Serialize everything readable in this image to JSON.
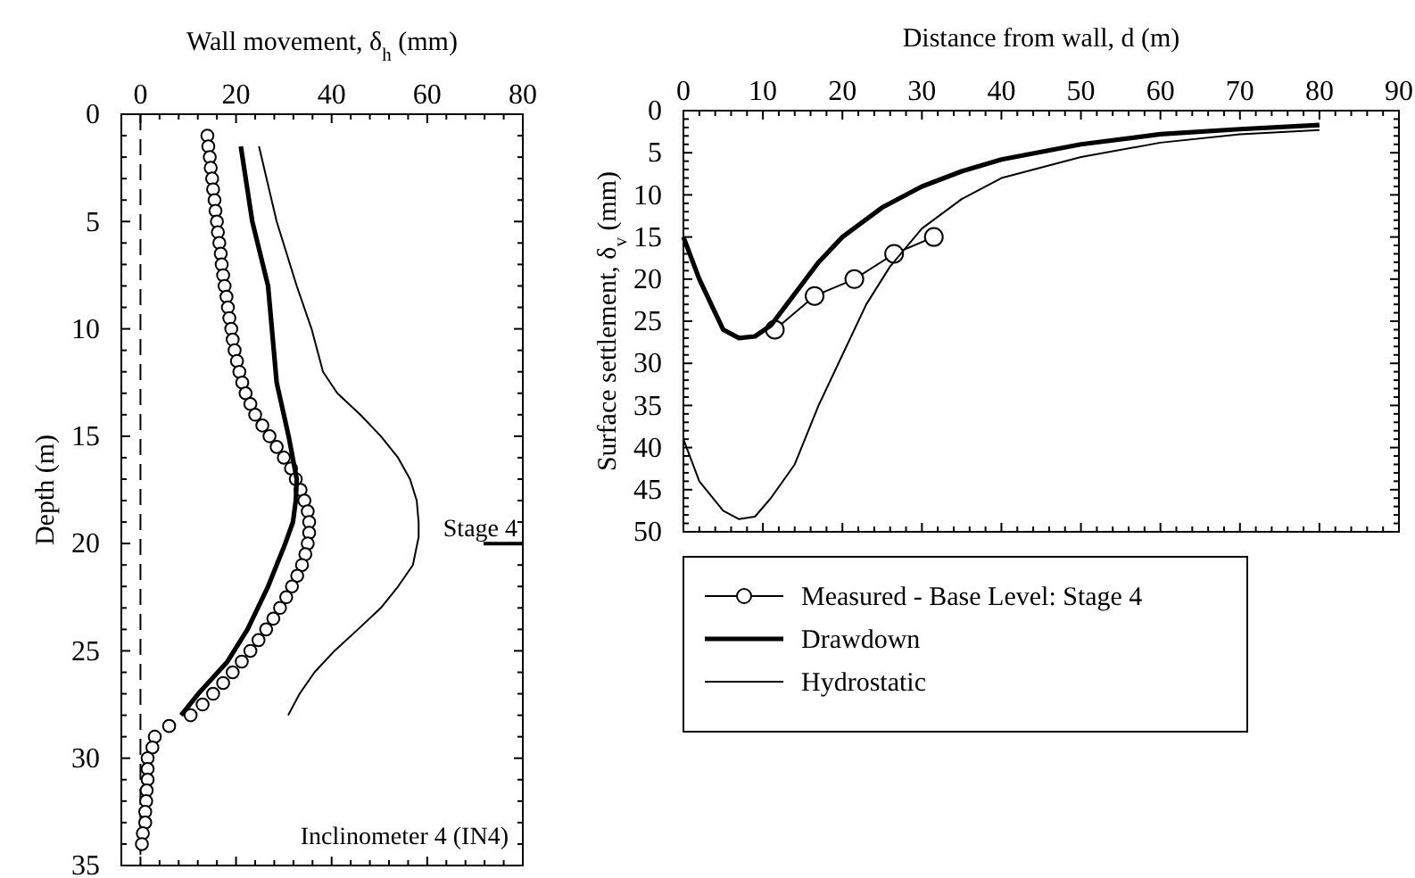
{
  "chart_data": [
    {
      "type": "line",
      "xlabel": "Wall movement, δ$_{h}$ (mm)",
      "ylabel": "Depth (m)",
      "xlim": [
        -4,
        80
      ],
      "ylim": [
        35,
        0
      ],
      "xticks": [
        0,
        {
          "value": 4,
          "label": null
        },
        {
          "value": 8,
          "label": null
        },
        {
          "value": 12,
          "label": null
        },
        {
          "value": 16,
          "label": null
        },
        20,
        {
          "value": 24,
          "label": null
        },
        {
          "value": 28,
          "label": null
        },
        {
          "value": 32,
          "label": null
        },
        {
          "value": 36,
          "label": null
        },
        40,
        {
          "value": 44,
          "label": null
        },
        {
          "value": 48,
          "label": null
        },
        {
          "value": 52,
          "label": null
        },
        {
          "value": 56,
          "label": null
        },
        60,
        {
          "value": 64,
          "label": null
        },
        {
          "value": 68,
          "label": null
        },
        {
          "value": 72,
          "label": null
        },
        {
          "value": 76,
          "label": null
        },
        80
      ],
      "yticks": [
        0,
        {
          "value": 1,
          "label": null
        },
        {
          "value": 2,
          "label": null
        },
        {
          "value": 3,
          "label": null
        },
        {
          "value": 4,
          "label": null
        },
        5,
        {
          "value": 6,
          "label": null
        },
        {
          "value": 7,
          "label": null
        },
        {
          "value": 8,
          "label": null
        },
        {
          "value": 9,
          "label": null
        },
        10,
        {
          "value": 11,
          "label": null
        },
        {
          "value": 12,
          "label": null
        },
        {
          "value": 13,
          "label": null
        },
        {
          "value": 14,
          "label": null
        },
        15,
        {
          "value": 16,
          "label": null
        },
        {
          "value": 17,
          "label": null
        },
        {
          "value": 18,
          "label": null
        },
        {
          "value": 19,
          "label": null
        },
        20,
        {
          "value": 21,
          "label": null
        },
        {
          "value": 22,
          "label": null
        },
        {
          "value": 23,
          "label": null
        },
        {
          "value": 24,
          "label": null
        },
        25,
        {
          "value": 26,
          "label": null
        },
        {
          "value": 27,
          "label": null
        },
        {
          "value": 28,
          "label": null
        },
        {
          "value": 29,
          "label": null
        },
        30,
        {
          "value": 31,
          "label": null
        },
        {
          "value": 32,
          "label": null
        },
        {
          "value": 33,
          "label": null
        },
        {
          "value": 34,
          "label": null
        },
        35
      ],
      "grid": false,
      "legend": false,
      "ref_lines": [
        {
          "axis": "x",
          "value": 0,
          "line_style": "dashed",
          "color": "#000000"
        },
        {
          "axis": "y",
          "value": 20,
          "label": "Stage 4",
          "color": "#000000"
        }
      ],
      "annotations": [
        "Inclinometer 4 (IN4)"
      ],
      "series": [
        {
          "type": "scatter",
          "marker": "circle",
          "color": "#000000",
          "x": [
            14,
            14.2,
            14.5,
            14.7,
            15,
            15.2,
            15.5,
            15.7,
            16,
            16.2,
            16.5,
            16.8,
            17,
            17.3,
            17.6,
            18,
            18.3,
            18.6,
            19,
            19.3,
            19.7,
            20.2,
            20.7,
            21.3,
            22,
            23,
            24,
            25.5,
            27,
            28.5,
            30,
            31.5,
            32.5,
            33.5,
            34.3,
            35,
            35.3,
            35.3,
            35,
            34.5,
            33.8,
            32.8,
            31.7,
            30.5,
            29.2,
            27.8,
            26.3,
            24.7,
            23,
            21.2,
            19.3,
            17.3,
            15.2,
            13,
            10.5,
            6,
            3,
            2.5,
            1.5,
            1.5,
            1.5,
            1.3,
            1.2,
            1,
            1,
            0.5,
            0.3
          ],
          "values": [
            1,
            1.5,
            2,
            2.5,
            3,
            3.5,
            4,
            4.5,
            5,
            5.5,
            6,
            6.5,
            7,
            7.5,
            8,
            8.5,
            9,
            9.5,
            10,
            10.5,
            11,
            11.5,
            12,
            12.5,
            13,
            13.5,
            14,
            14.5,
            15,
            15.5,
            16,
            16.5,
            17,
            17.5,
            18,
            18.5,
            19,
            19.5,
            20,
            20.5,
            21,
            21.5,
            22,
            22.5,
            23,
            23.5,
            24,
            24.5,
            25,
            25.5,
            26,
            26.5,
            27,
            27.5,
            28,
            28.5,
            29,
            29.5,
            30,
            30.5,
            31,
            31.5,
            32,
            32.5,
            33,
            33.5,
            34
          ]
        },
        {
          "type": "line",
          "marker": "none",
          "color": "#000000",
          "x": [
            21,
            23.4,
            26.7,
            27.5,
            28.5,
            29,
            31,
            32.7,
            32.5,
            31.9,
            30.3,
            26.7,
            22.4,
            18.2,
            12.1,
            8.5
          ],
          "values": [
            1.5,
            5,
            8,
            10,
            12.5,
            13,
            15,
            17,
            18,
            19,
            20,
            22,
            24,
            25.5,
            27,
            28
          ]
        },
        {
          "type": "line",
          "marker": "none",
          "color": "#000000",
          "x": [
            24.8,
            28.5,
            32.7,
            35.8,
            38.2,
            41.2,
            46,
            50.3,
            53.9,
            56.4,
            57.8,
            58.2,
            58.2,
            57,
            53.9,
            50.3,
            45.5,
            40.6,
            36.4,
            33.3,
            30.9
          ],
          "values": [
            1.5,
            5,
            8,
            10,
            12,
            13,
            14,
            15,
            16,
            17,
            18,
            19,
            19.7,
            21,
            22,
            23,
            24,
            25,
            26,
            27,
            28
          ]
        }
      ]
    },
    {
      "type": "line",
      "xlabel": "Distance from wall, d (m)",
      "ylabel": "Surface settlement, δ$_{v}$ (mm)",
      "xlim": [
        0,
        90
      ],
      "ylim": [
        50,
        0
      ],
      "xticks": [
        0,
        {
          "value": 2,
          "label": null
        },
        {
          "value": 4,
          "label": null
        },
        {
          "value": 6,
          "label": null
        },
        {
          "value": 8,
          "label": null
        },
        10,
        {
          "value": 12,
          "label": null
        },
        {
          "value": 14,
          "label": null
        },
        {
          "value": 16,
          "label": null
        },
        {
          "value": 18,
          "label": null
        },
        20,
        {
          "value": 22,
          "label": null
        },
        {
          "value": 24,
          "label": null
        },
        {
          "value": 26,
          "label": null
        },
        {
          "value": 28,
          "label": null
        },
        30,
        {
          "value": 32,
          "label": null
        },
        {
          "value": 34,
          "label": null
        },
        {
          "value": 36,
          "label": null
        },
        {
          "value": 38,
          "label": null
        },
        40,
        {
          "value": 42,
          "label": null
        },
        {
          "value": 44,
          "label": null
        },
        {
          "value": 46,
          "label": null
        },
        {
          "value": 48,
          "label": null
        },
        50,
        {
          "value": 52,
          "label": null
        },
        {
          "value": 54,
          "label": null
        },
        {
          "value": 56,
          "label": null
        },
        {
          "value": 58,
          "label": null
        },
        60,
        {
          "value": 62,
          "label": null
        },
        {
          "value": 64,
          "label": null
        },
        {
          "value": 66,
          "label": null
        },
        {
          "value": 68,
          "label": null
        },
        70,
        {
          "value": 72,
          "label": null
        },
        {
          "value": 74,
          "label": null
        },
        {
          "value": 76,
          "label": null
        },
        {
          "value": 78,
          "label": null
        },
        80,
        {
          "value": 82,
          "label": null
        },
        {
          "value": 84,
          "label": null
        },
        {
          "value": 86,
          "label": null
        },
        {
          "value": 88,
          "label": null
        },
        90
      ],
      "yticks": [
        0,
        {
          "value": 1,
          "label": null
        },
        {
          "value": 2,
          "label": null
        },
        {
          "value": 3,
          "label": null
        },
        {
          "value": 4,
          "label": null
        },
        5,
        {
          "value": 6,
          "label": null
        },
        {
          "value": 7,
          "label": null
        },
        {
          "value": 8,
          "label": null
        },
        {
          "value": 9,
          "label": null
        },
        10,
        {
          "value": 11,
          "label": null
        },
        {
          "value": 12,
          "label": null
        },
        {
          "value": 13,
          "label": null
        },
        {
          "value": 14,
          "label": null
        },
        15,
        {
          "value": 16,
          "label": null
        },
        {
          "value": 17,
          "label": null
        },
        {
          "value": 18,
          "label": null
        },
        {
          "value": 19,
          "label": null
        },
        20,
        {
          "value": 21,
          "label": null
        },
        {
          "value": 22,
          "label": null
        },
        {
          "value": 23,
          "label": null
        },
        {
          "value": 24,
          "label": null
        },
        25,
        {
          "value": 26,
          "label": null
        },
        {
          "value": 27,
          "label": null
        },
        {
          "value": 28,
          "label": null
        },
        {
          "value": 29,
          "label": null
        },
        30,
        {
          "value": 31,
          "label": null
        },
        {
          "value": 32,
          "label": null
        },
        {
          "value": 33,
          "label": null
        },
        {
          "value": 34,
          "label": null
        },
        35,
        {
          "value": 36,
          "label": null
        },
        {
          "value": 37,
          "label": null
        },
        {
          "value": 38,
          "label": null
        },
        {
          "value": 39,
          "label": null
        },
        40,
        {
          "value": 41,
          "label": null
        },
        {
          "value": 42,
          "label": null
        },
        {
          "value": 43,
          "label": null
        },
        {
          "value": 44,
          "label": null
        },
        45,
        {
          "value": 46,
          "label": null
        },
        {
          "value": 47,
          "label": null
        },
        {
          "value": 48,
          "label": null
        },
        {
          "value": 49,
          "label": null
        },
        50
      ],
      "grid": false,
      "legend": "bottom",
      "series": [
        {
          "name": "Measured - Base Level: Stage 4",
          "type": "line",
          "marker": "circle",
          "color": "#000000",
          "x": [
            11.5,
            16.5,
            21.5,
            26.5,
            31.5
          ],
          "values": [
            26,
            22,
            20,
            17,
            15
          ]
        },
        {
          "name": "Drawdown",
          "type": "line",
          "marker": "none",
          "color": "#000000",
          "x": [
            0,
            2,
            4,
            5,
            7,
            9,
            11,
            13,
            15,
            17,
            20,
            25,
            30,
            35,
            40,
            50,
            60,
            70,
            80
          ],
          "values": [
            15,
            20,
            24,
            26,
            27,
            26.8,
            25.5,
            23,
            20.5,
            18,
            15,
            11.5,
            9,
            7.2,
            5.8,
            4,
            2.8,
            2.2,
            1.7
          ]
        },
        {
          "name": "Hydrostatic",
          "type": "line",
          "marker": "none",
          "color": "#000000",
          "x": [
            0,
            2,
            5,
            7,
            9,
            11,
            14,
            17,
            20,
            23,
            26,
            30,
            35,
            40,
            50,
            60,
            70,
            80
          ],
          "values": [
            39,
            44,
            47.5,
            48.5,
            48.2,
            46,
            42,
            35,
            29,
            23,
            18.5,
            14,
            10.5,
            8,
            5.5,
            3.8,
            2.8,
            2.3
          ]
        }
      ]
    }
  ]
}
